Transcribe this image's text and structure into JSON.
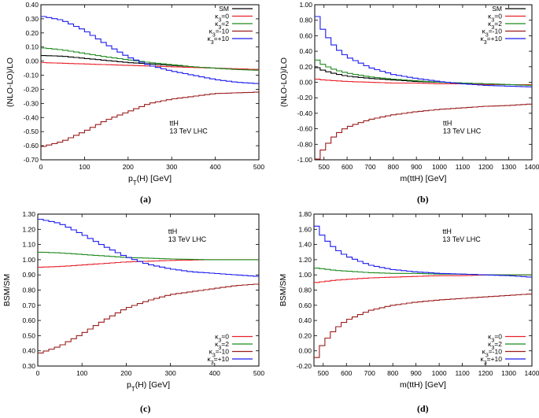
{
  "figure": {
    "captions": [
      "(a)",
      "(b)",
      "(c)",
      "(d)"
    ]
  },
  "chart_data": [
    {
      "id": "a",
      "type": "line",
      "step": true,
      "title": "",
      "xlabel": "p_T(H) [GeV]",
      "ylabel": "(NLO-LO)/LO",
      "xlim": [
        0,
        500
      ],
      "ylim": [
        -0.7,
        0.4
      ],
      "xticks": [
        0,
        100,
        200,
        300,
        400,
        500
      ],
      "xtick_labels": [
        "0",
        "100",
        "200",
        "300",
        "400",
        "500"
      ],
      "yticks": [
        0.4,
        0.3,
        0.2,
        0.1,
        0.0,
        -0.1,
        -0.2,
        -0.3,
        -0.4,
        -0.5,
        -0.6,
        -0.7
      ],
      "ytick_labels": [
        "0.40",
        "0.30",
        "0.20",
        "0.10",
        "0.00",
        "-0.10",
        "-0.20",
        "-0.30",
        "-0.40",
        "-0.50",
        "-0.60",
        "-0.70"
      ],
      "annotation": [
        "ttH",
        "13 TeV LHC"
      ],
      "legend": "top-right",
      "x": [
        0,
        50,
        100,
        150,
        200,
        250,
        300,
        350,
        400,
        450,
        500
      ],
      "series": [
        {
          "name": "SM",
          "color": "#000000",
          "values": [
            0.04,
            0.035,
            0.02,
            0.005,
            -0.01,
            -0.02,
            -0.03,
            -0.04,
            -0.05,
            -0.055,
            -0.06
          ]
        },
        {
          "name": "κ3=0",
          "color": "#e8202a",
          "values": [
            -0.01,
            -0.015,
            -0.02,
            -0.025,
            -0.03,
            -0.035,
            -0.04,
            -0.045,
            -0.05,
            -0.055,
            -0.06
          ]
        },
        {
          "name": "κ3=2",
          "color": "#1e8a1e",
          "values": [
            0.095,
            0.08,
            0.055,
            0.03,
            0.01,
            -0.01,
            -0.025,
            -0.04,
            -0.05,
            -0.06,
            -0.065
          ]
        },
        {
          "name": "κ3=-10",
          "color": "#9b1c1c",
          "values": [
            -0.61,
            -0.57,
            -0.5,
            -0.42,
            -0.36,
            -0.3,
            -0.27,
            -0.25,
            -0.23,
            -0.225,
            -0.22
          ]
        },
        {
          "name": "κ3=+10",
          "color": "#1a1aef",
          "values": [
            0.32,
            0.29,
            0.22,
            0.12,
            0.03,
            -0.03,
            -0.07,
            -0.1,
            -0.13,
            -0.15,
            -0.16
          ]
        }
      ]
    },
    {
      "id": "b",
      "type": "line",
      "step": true,
      "title": "",
      "xlabel": "m(ttH) [GeV]",
      "ylabel": "(NLO-LO)/LO",
      "xlim": [
        460,
        1400
      ],
      "ylim": [
        -1.0,
        1.0
      ],
      "xticks": [
        500,
        600,
        700,
        800,
        900,
        1000,
        1100,
        1200,
        1300,
        1400
      ],
      "xtick_labels": [
        "500",
        "600",
        "700",
        "800",
        "900",
        "1000",
        "1100",
        "1200",
        "1300",
        "1400"
      ],
      "yticks": [
        1.0,
        0.8,
        0.6,
        0.4,
        0.2,
        0.0,
        -0.2,
        -0.4,
        -0.6,
        -0.8,
        -1.0
      ],
      "ytick_labels": [
        "1.00",
        "0.80",
        "0.60",
        "0.40",
        "0.20",
        "0.00",
        "-0.20",
        "-0.40",
        "-0.60",
        "-0.80",
        "-1.00"
      ],
      "annotation": [
        "ttH",
        "13 TeV LHC"
      ],
      "legend": "top-right",
      "x": [
        470,
        500,
        550,
        600,
        700,
        800,
        900,
        1000,
        1100,
        1200,
        1300,
        1400
      ],
      "series": [
        {
          "name": "SM",
          "color": "#000000",
          "values": [
            0.19,
            0.15,
            0.11,
            0.08,
            0.05,
            0.03,
            0.01,
            0.0,
            -0.01,
            -0.02,
            -0.03,
            -0.03
          ]
        },
        {
          "name": "κ3=0",
          "color": "#e8202a",
          "values": [
            0.04,
            0.03,
            0.02,
            0.01,
            0.0,
            -0.01,
            -0.01,
            -0.02,
            -0.02,
            -0.03,
            -0.03,
            -0.03
          ]
        },
        {
          "name": "κ3=2",
          "color": "#1e8a1e",
          "values": [
            0.29,
            0.22,
            0.16,
            0.12,
            0.07,
            0.04,
            0.02,
            0.0,
            -0.01,
            -0.02,
            -0.03,
            -0.04
          ]
        },
        {
          "name": "κ3=-10",
          "color": "#9b1c1c",
          "values": [
            -1.0,
            -0.85,
            -0.68,
            -0.58,
            -0.48,
            -0.42,
            -0.38,
            -0.35,
            -0.33,
            -0.31,
            -0.3,
            -0.28
          ]
        },
        {
          "name": "κ3=+10",
          "color": "#1a1aef",
          "values": [
            0.86,
            0.65,
            0.45,
            0.33,
            0.19,
            0.1,
            0.05,
            0.01,
            -0.02,
            -0.04,
            -0.05,
            -0.06
          ]
        }
      ]
    },
    {
      "id": "c",
      "type": "line",
      "step": true,
      "title": "",
      "xlabel": "p_T(H) [GeV]",
      "ylabel": "BSM/SM",
      "xlim": [
        0,
        500
      ],
      "ylim": [
        0.3,
        1.3
      ],
      "xticks": [
        0,
        100,
        200,
        300,
        400,
        500
      ],
      "xtick_labels": [
        "0",
        "100",
        "200",
        "300",
        "400",
        "500"
      ],
      "yticks": [
        1.3,
        1.2,
        1.1,
        1.0,
        0.9,
        0.8,
        0.7,
        0.6,
        0.5,
        0.4,
        0.3
      ],
      "ytick_labels": [
        "1.30",
        "1.20",
        "1.10",
        "1.00",
        "0.90",
        "0.80",
        "0.70",
        "0.60",
        "0.50",
        "0.40",
        "0.30"
      ],
      "annotation": [
        "ttH",
        "13 TeV LHC"
      ],
      "legend": "bottom-right",
      "x": [
        0,
        50,
        100,
        150,
        200,
        250,
        300,
        350,
        400,
        450,
        500
      ],
      "series": [
        {
          "name": "κ3=0",
          "color": "#e8202a",
          "values": [
            0.95,
            0.955,
            0.965,
            0.975,
            0.985,
            0.99,
            0.995,
            0.998,
            1.0,
            1.0,
            1.0
          ]
        },
        {
          "name": "κ3=2",
          "color": "#1e8a1e",
          "values": [
            1.05,
            1.045,
            1.035,
            1.025,
            1.015,
            1.01,
            1.005,
            1.002,
            1.0,
            1.0,
            1.0
          ]
        },
        {
          "name": "κ3=-10",
          "color": "#9b1c1c",
          "values": [
            0.38,
            0.43,
            0.51,
            0.6,
            0.68,
            0.73,
            0.77,
            0.79,
            0.81,
            0.83,
            0.84
          ]
        },
        {
          "name": "κ3=+10",
          "color": "#1a1aef",
          "values": [
            1.27,
            1.24,
            1.17,
            1.09,
            1.02,
            0.97,
            0.94,
            0.92,
            0.91,
            0.9,
            0.89
          ]
        }
      ]
    },
    {
      "id": "d",
      "type": "line",
      "step": true,
      "title": "",
      "xlabel": "m(ttH) [GeV]",
      "ylabel": "BSM/SM",
      "xlim": [
        460,
        1400
      ],
      "ylim": [
        -0.2,
        1.8
      ],
      "xticks": [
        500,
        600,
        700,
        800,
        900,
        1000,
        1100,
        1200,
        1300,
        1400
      ],
      "xtick_labels": [
        "500",
        "600",
        "700",
        "800",
        "900",
        "1000",
        "1100",
        "1200",
        "1300",
        "1400"
      ],
      "yticks": [
        1.8,
        1.6,
        1.4,
        1.2,
        1.0,
        0.8,
        0.6,
        0.4,
        0.2,
        0.0,
        -0.2
      ],
      "ytick_labels": [
        "1.80",
        "1.60",
        "1.40",
        "1.20",
        "1.00",
        "0.80",
        "0.60",
        "0.40",
        "0.20",
        "0.00",
        "-0.20"
      ],
      "annotation": [
        "ttH",
        "13 TeV LHC"
      ],
      "legend": "bottom-right",
      "x": [
        470,
        500,
        550,
        600,
        700,
        800,
        900,
        1000,
        1100,
        1200,
        1300,
        1400
      ],
      "series": [
        {
          "name": "κ3=0",
          "color": "#e8202a",
          "values": [
            0.9,
            0.91,
            0.93,
            0.94,
            0.96,
            0.97,
            0.98,
            0.99,
            0.99,
            1.0,
            1.0,
            1.0
          ]
        },
        {
          "name": "κ3=2",
          "color": "#1e8a1e",
          "values": [
            1.09,
            1.08,
            1.06,
            1.05,
            1.03,
            1.02,
            1.02,
            1.01,
            1.01,
            1.0,
            1.0,
            1.0
          ]
        },
        {
          "name": "κ3=-10",
          "color": "#9b1c1c",
          "values": [
            -0.1,
            0.1,
            0.28,
            0.4,
            0.53,
            0.6,
            0.64,
            0.67,
            0.69,
            0.71,
            0.73,
            0.75
          ]
        },
        {
          "name": "κ3=+10",
          "color": "#1a1aef",
          "values": [
            1.65,
            1.5,
            1.35,
            1.25,
            1.13,
            1.07,
            1.04,
            1.02,
            1.01,
            1.0,
            0.99,
            0.97
          ]
        }
      ]
    }
  ]
}
